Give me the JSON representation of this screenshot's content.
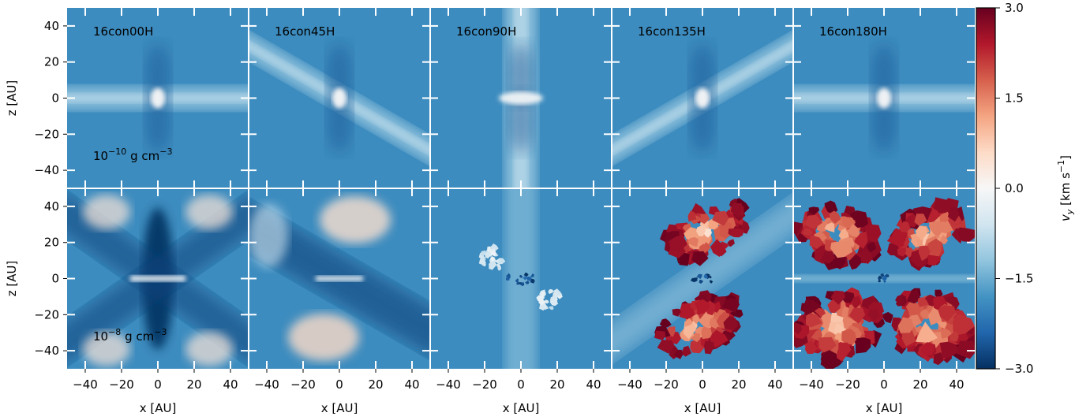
{
  "chart_data": {
    "type": "heatmap",
    "panel_titles": [
      "16con00H",
      "16con45H",
      "16con90H",
      "16con135H",
      "16con180H"
    ],
    "row_annotations": [
      {
        "base": "10",
        "exp": "−10",
        "unit": " g cm",
        "unit_exp": "−3"
      },
      {
        "base": "10",
        "exp": "−8",
        "unit": " g cm",
        "unit_exp": "−3"
      }
    ],
    "xlabel": "x [AU]",
    "ylabel": "z [AU]",
    "xlim": [
      -50,
      50
    ],
    "ylim": [
      -50,
      50
    ],
    "xticks": [
      -40,
      -20,
      0,
      20,
      40
    ],
    "yticks": [
      -40,
      -20,
      0,
      20,
      40
    ],
    "xtick_labels": [
      "−40",
      "−20",
      "0",
      "20",
      "40"
    ],
    "ytick_labels": [
      "−40",
      "−20",
      "0",
      "20",
      "40"
    ],
    "colorbar": {
      "label_var": "v",
      "label_sub": "y",
      "label_unit": " [km s",
      "label_unit_exp": "−1",
      "label_close": "]",
      "range": [
        -3.0,
        3.0
      ],
      "ticks": [
        3.0,
        1.5,
        0.0,
        -1.5,
        -3.0
      ],
      "tick_labels": [
        "3.0",
        "1.5",
        "0.0",
        "−1.5",
        "−3.0"
      ],
      "colormap": "RdBu_r",
      "stops": [
        "#053061",
        "#2166ac",
        "#4393c3",
        "#92c5de",
        "#d1e5f0",
        "#f7f7f7",
        "#fddbc7",
        "#f4a582",
        "#d6604d",
        "#b2182b",
        "#67001f"
      ]
    },
    "background_value": -1.9
  }
}
